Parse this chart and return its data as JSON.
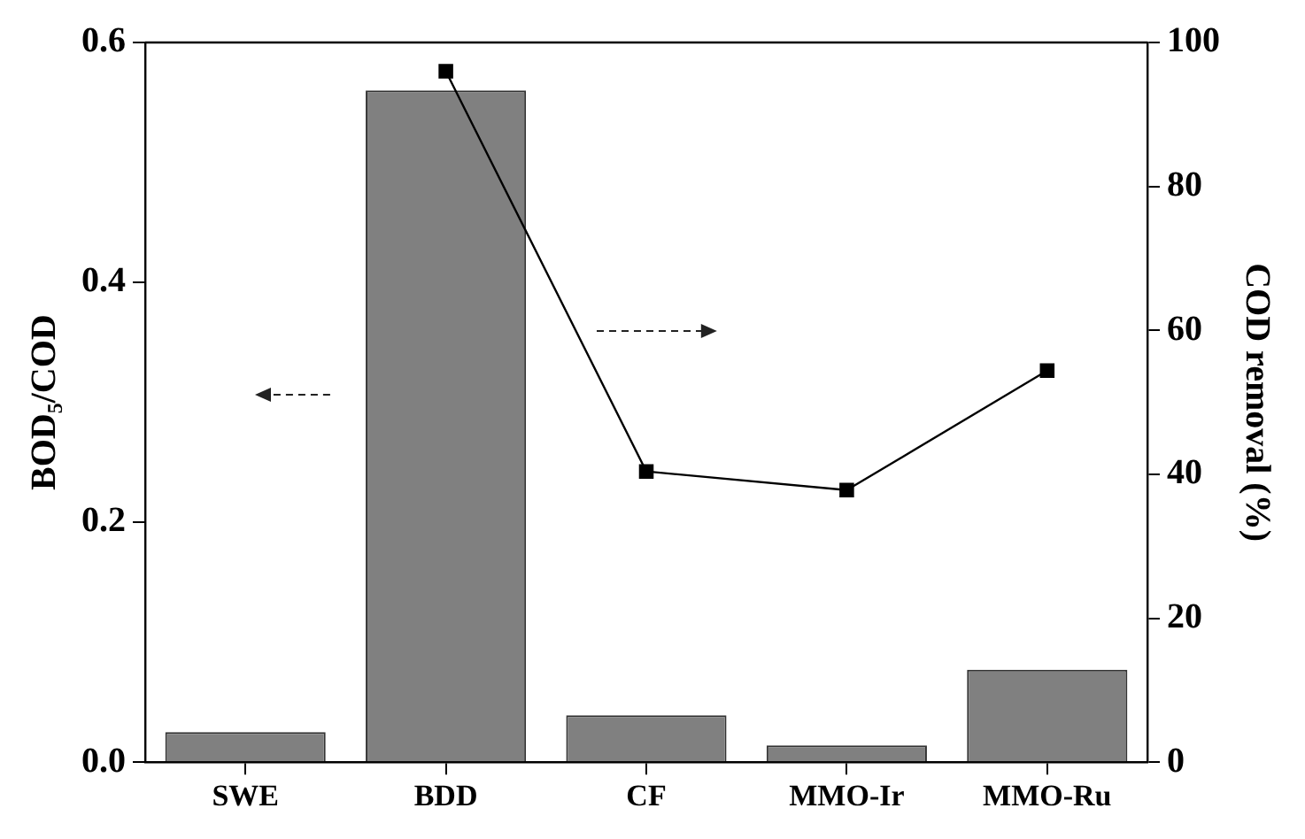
{
  "chart_data": {
    "type": "bar",
    "categories": [
      "SWE",
      "BDD",
      "CF",
      "MMO-Ir",
      "MMO-Ru"
    ],
    "ylabel": "BOD₅/COD",
    "y2label": "COD removal (%)",
    "series": [
      {
        "color": "#808080",
        "values": [
          0.025,
          0.56,
          0.039,
          0.014,
          0.077
        ]
      },
      {
        "type": "line",
        "axis": "y2",
        "color": "#000000",
        "marker": "square",
        "line_style": "solid",
        "values": [
          null,
          96,
          40.4,
          37.8,
          54.4
        ]
      }
    ],
    "ylim": [
      0,
      0.6
    ],
    "yticks": [
      {
        "value": 0,
        "label": "0.0"
      },
      0.2,
      0.4,
      0.6
    ],
    "y2lim": [
      0,
      100
    ],
    "y2ticks": [
      0,
      20,
      40,
      60,
      80,
      100
    ],
    "grid": false,
    "legend": false
  }
}
